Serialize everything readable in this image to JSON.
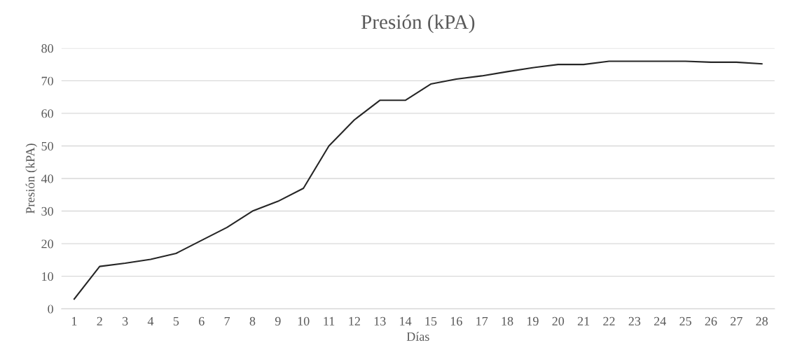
{
  "chart_data": {
    "type": "line",
    "title": "Presión (kPA)",
    "xlabel": "Días",
    "ylabel": "Presión (kPA)",
    "categories": [
      "1",
      "2",
      "3",
      "4",
      "5",
      "6",
      "7",
      "8",
      "9",
      "10",
      "11",
      "12",
      "13",
      "14",
      "15",
      "16",
      "17",
      "18",
      "19",
      "20",
      "21",
      "22",
      "23",
      "24",
      "25",
      "26",
      "27",
      "28"
    ],
    "series": [
      {
        "color": "#262626",
        "values": [
          3,
          13,
          14,
          15.2,
          17,
          21,
          25,
          30,
          33,
          37,
          50,
          58,
          64,
          64,
          69,
          70.5,
          71.5,
          72.8,
          74,
          75,
          75,
          76,
          76,
          76,
          76,
          75.7,
          75.7,
          75.2
        ]
      }
    ],
    "ylim": [
      0,
      80
    ],
    "yticks": [
      0,
      10,
      20,
      30,
      40,
      50,
      60,
      70,
      80
    ],
    "grid": "y",
    "legend": false,
    "marker": "none",
    "line_style": "solid"
  }
}
